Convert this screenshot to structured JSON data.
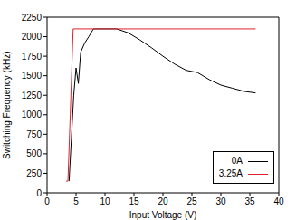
{
  "chart_data": {
    "type": "line",
    "x_label": "Input Voltage (V)",
    "y_label": "Switching Frequency (kHz)",
    "xlim": [
      0,
      40
    ],
    "xticks": [
      0,
      5,
      10,
      15,
      20,
      25,
      30,
      35,
      40
    ],
    "ylim": [
      0,
      2250
    ],
    "yticks": [
      0,
      250,
      500,
      750,
      1000,
      1250,
      1500,
      1750,
      2000,
      2250
    ],
    "grid": false,
    "legend": "lower right",
    "series": [
      {
        "name": "0A",
        "color": "#000000",
        "x": [
          3.8,
          4.2,
          4.6,
          5.0,
          5.4,
          5.8,
          6.5,
          7.2,
          8,
          12,
          14,
          16,
          18,
          20,
          22,
          24,
          26,
          28,
          30,
          32,
          34,
          36
        ],
        "values": [
          150,
          700,
          1250,
          1600,
          1400,
          1800,
          1920,
          2000,
          2100,
          2100,
          2050,
          1960,
          1860,
          1750,
          1650,
          1570,
          1540,
          1450,
          1380,
          1340,
          1300,
          1280
        ]
      },
      {
        "name": "3.25A",
        "color": "#e0202a",
        "x": [
          3.3,
          3.6,
          4.0,
          4.5,
          36
        ],
        "values": [
          150,
          150,
          1000,
          2100,
          2100
        ]
      }
    ]
  }
}
